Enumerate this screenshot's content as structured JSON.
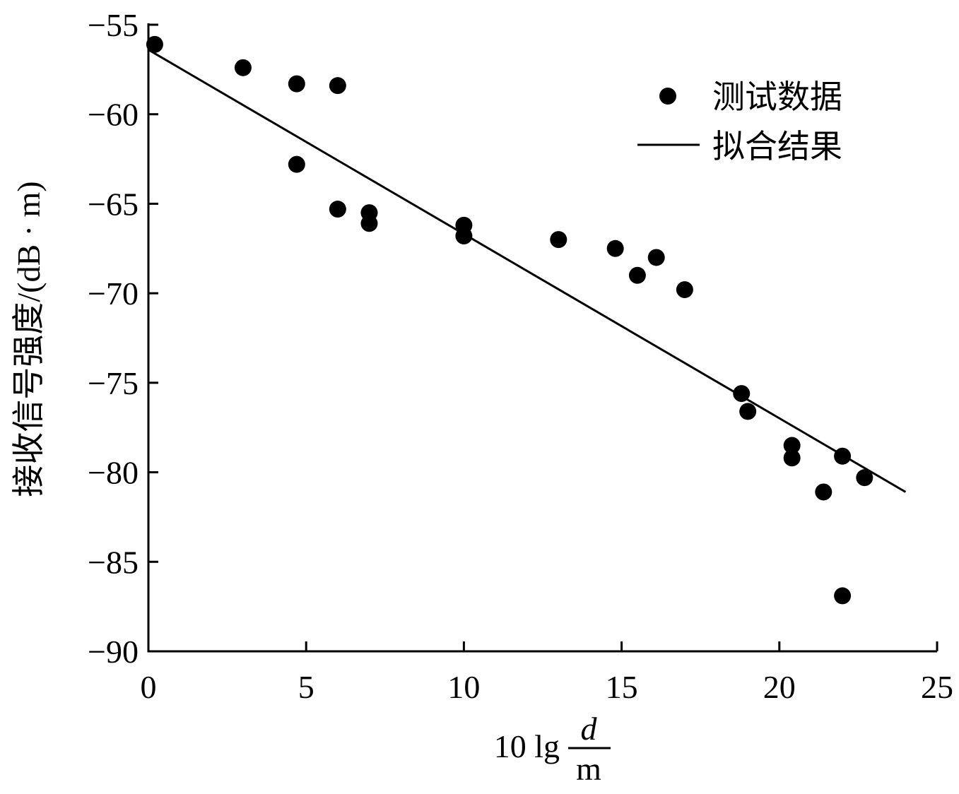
{
  "chart_data": {
    "type": "scatter",
    "title": "",
    "xlabel": {
      "prefix": "10 lg",
      "numerator": "d",
      "denominator": "m"
    },
    "ylabel": "接收信号强度/(dB · m)",
    "xlim": [
      0,
      25
    ],
    "ylim": [
      -90,
      -55
    ],
    "xticks": [
      0,
      5,
      10,
      15,
      20,
      25
    ],
    "xtick_labels": [
      "0",
      "5",
      "10",
      "15",
      "20",
      "25"
    ],
    "yticks": [
      -55,
      -60,
      -65,
      -70,
      -75,
      -80,
      -85,
      -90
    ],
    "ytick_labels": [
      "−55",
      "−60",
      "−65",
      "−70",
      "−75",
      "−80",
      "−85",
      "−90"
    ],
    "grid": false,
    "legend": {
      "placement": "top-right",
      "entries": [
        {
          "label": "测试数据",
          "marker": "circle"
        },
        {
          "label": "拟合结果",
          "marker": "line"
        }
      ]
    },
    "series": [
      {
        "label": "测试数据",
        "kind": "scatter",
        "color": "#000000",
        "points": [
          [
            0.2,
            -56.1
          ],
          [
            3.0,
            -57.4
          ],
          [
            4.7,
            -58.3
          ],
          [
            6.0,
            -58.4
          ],
          [
            4.7,
            -62.8
          ],
          [
            6.0,
            -65.3
          ],
          [
            7.0,
            -65.5
          ],
          [
            7.0,
            -66.1
          ],
          [
            10.0,
            -66.2
          ],
          [
            10.0,
            -66.8
          ],
          [
            13.0,
            -67.0
          ],
          [
            14.8,
            -67.5
          ],
          [
            15.5,
            -69.0
          ],
          [
            16.1,
            -68.0
          ],
          [
            17.0,
            -69.8
          ],
          [
            18.8,
            -75.6
          ],
          [
            19.0,
            -76.6
          ],
          [
            20.4,
            -78.5
          ],
          [
            20.4,
            -79.2
          ],
          [
            21.4,
            -81.1
          ],
          [
            22.0,
            -79.1
          ],
          [
            22.7,
            -80.3
          ],
          [
            22.0,
            -86.9
          ]
        ]
      },
      {
        "label": "拟合结果",
        "kind": "line",
        "color": "#000000",
        "points": [
          [
            0,
            -56.4
          ],
          [
            24,
            -81.1
          ]
        ]
      }
    ]
  }
}
